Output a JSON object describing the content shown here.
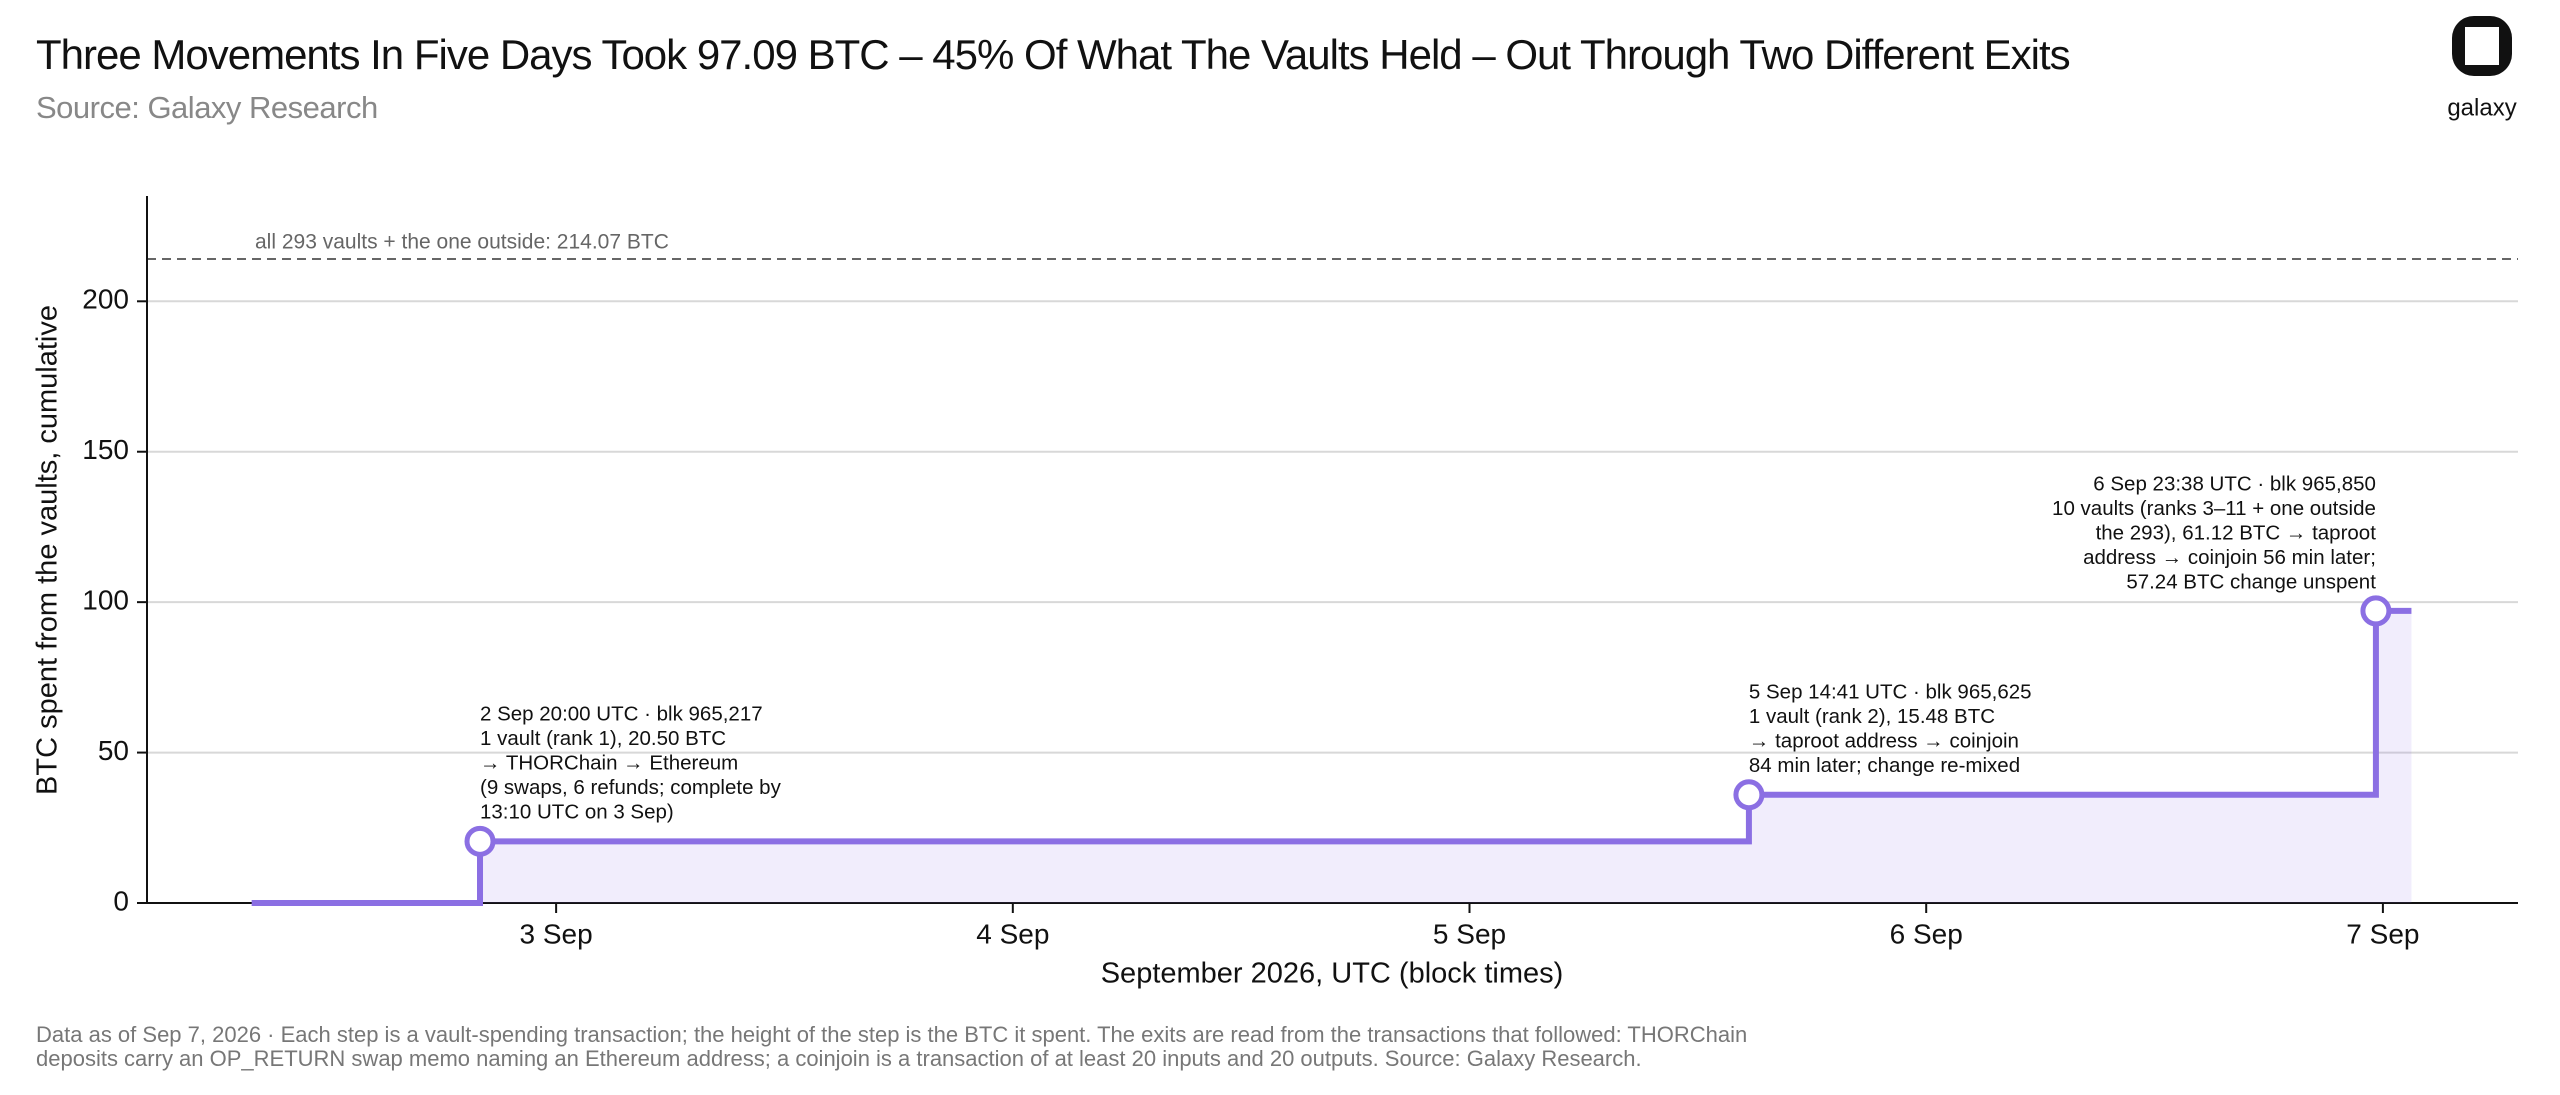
{
  "header": {
    "title": "Three Movements In Five Days Took 97.09 BTC – 45% Of What The Vaults Held – Out Through Two Different Exits",
    "subtitle": "Source: Galaxy Research",
    "logo": "galaxy"
  },
  "chart_data": {
    "type": "step",
    "x_label": "September 2026, UTC (block times)",
    "y_label": "BTC spent from the vaults, cumulative",
    "x": [
      "2026-09-02T08:00",
      "2026-09-02T20:00",
      "2026-09-05T14:41",
      "2026-09-06T23:38",
      "2026-09-07T01:30"
    ],
    "series": [
      {
        "color": "#8b6fe3",
        "values": [
          0,
          20.5,
          35.98,
          97.09,
          97.09
        ]
      }
    ],
    "markers": [
      1,
      2,
      3
    ],
    "xlim": [
      "2026-09-02T02:30",
      "2026-09-07T07:06"
    ],
    "xticks": [
      {
        "value": "2026-09-03T00:00",
        "label": "3 Sep"
      },
      {
        "value": "2026-09-04T00:00",
        "label": "4 Sep"
      },
      {
        "value": "2026-09-05T00:00",
        "label": "5 Sep"
      },
      {
        "value": "2026-09-06T00:00",
        "label": "6 Sep"
      },
      {
        "value": "2026-09-07T00:00",
        "label": "7 Sep"
      }
    ],
    "ylim": [
      0,
      235
    ],
    "yticks": [
      0,
      50,
      100,
      150,
      200
    ],
    "grid": true,
    "reference": {
      "value": 214.07,
      "label": "all 293 vaults + the one outside: 214.07 BTC"
    },
    "annotations": [
      {
        "point": 1,
        "align": "left",
        "lines": [
          "2 Sep 20:00 UTC · blk 965,217",
          "1 vault (rank 1), 20.50 BTC",
          "→ THORChain → Ethereum",
          "(9 swaps, 6 refunds; complete by",
          "13:10 UTC on 3 Sep)"
        ]
      },
      {
        "point": 2,
        "align": "left",
        "lines": [
          "5 Sep 14:41 UTC · blk 965,625",
          "1 vault (rank 2), 15.48 BTC",
          "→ taproot address → coinjoin",
          "84 min later; change re-mixed"
        ]
      },
      {
        "point": 3,
        "align": "right",
        "lines": [
          "6 Sep 23:38 UTC · blk 965,850",
          "10 vaults (ranks 3–11 + one outside",
          "the 293), 61.12 BTC → taproot",
          "address → coinjoin 56 min later;",
          "57.24 BTC change unspent"
        ]
      }
    ]
  },
  "footer": [
    "Data as of Sep 7, 2026 · Each step is a vault-spending transaction; the height of the step is the BTC it spent. The exits are read from the transactions that followed: THORChain",
    "deposits carry an OP_RETURN swap memo naming an Ethereum address; a coinjoin is a transaction of at least 20 inputs and 20 outputs. Source: Galaxy Research."
  ]
}
